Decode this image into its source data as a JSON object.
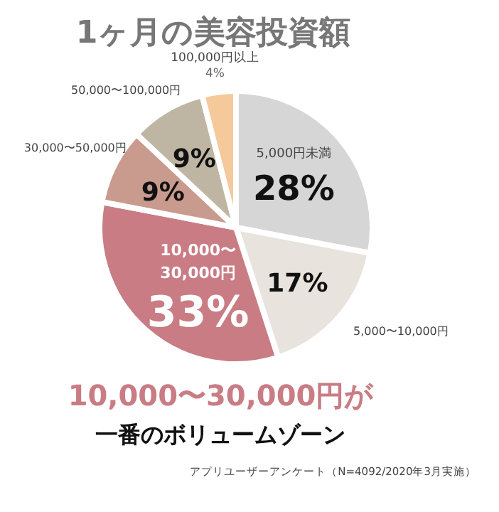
{
  "chart_data": {
    "type": "pie",
    "title": "1ヶ月の美容投資額",
    "categories": [
      "5,000円未満",
      "5,000〜10,000円",
      "10,000〜30,000円",
      "30,000〜50,000円",
      "50,000〜100,000円",
      "100,000円以上"
    ],
    "values": [
      28,
      17,
      33,
      9,
      9,
      4
    ],
    "value_labels": [
      "28%",
      "17%",
      "33%",
      "9%",
      "9%",
      "4%"
    ],
    "colors": [
      "#d6d6d6",
      "#e9e3dd",
      "#c97c84",
      "#c99a8e",
      "#bfb5a3",
      "#f5c99a"
    ],
    "annotations": [
      "10,000〜30,000円が",
      "一番のボリュームゾーン",
      "アプリユーザーアンケート（N=4092/2020年3月実施）"
    ]
  }
}
